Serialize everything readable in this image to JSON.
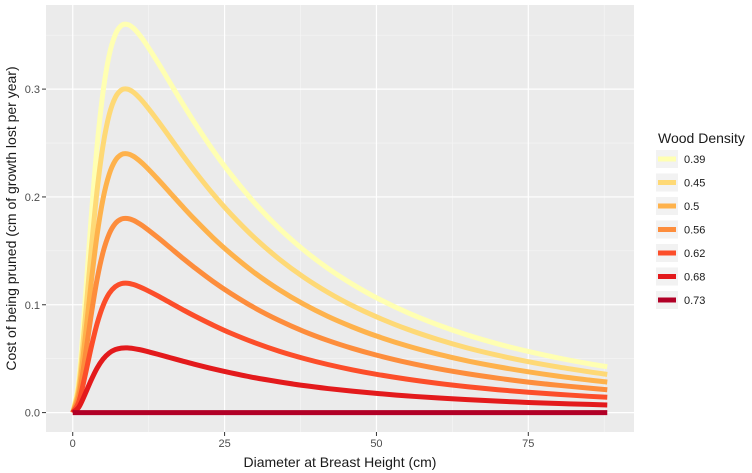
{
  "chart_data": {
    "type": "line",
    "xlabel": "Diameter at Breast Height (cm)",
    "ylabel": "Cost of being pruned (cm of growth lost per year)",
    "xlim": [
      -4.4,
      92.4
    ],
    "ylim": [
      -0.018,
      0.378
    ],
    "x_ticks": [
      0,
      25,
      50,
      75
    ],
    "x_tick_labels": [
      "0",
      "25",
      "50",
      "75"
    ],
    "y_ticks": [
      0.0,
      0.1,
      0.2,
      0.3
    ],
    "y_tick_labels": [
      "0.0",
      "0.1",
      "0.2",
      "0.3"
    ],
    "grid": true,
    "legend_title": "Wood Density",
    "legend_position": "right",
    "x": [
      0,
      1,
      2,
      3,
      4,
      5,
      6,
      7,
      8,
      9,
      10,
      11,
      12,
      14,
      16,
      18,
      20,
      23,
      26,
      30,
      34,
      38,
      42,
      46,
      50,
      55,
      60,
      65,
      70,
      75,
      80,
      85,
      88
    ],
    "series": [
      {
        "name": "0.39",
        "color": "#ffffb2",
        "values": [
          0.0,
          0.0301,
          0.1002,
          0.1781,
          0.2466,
          0.2978,
          0.3314,
          0.3505,
          0.3589,
          0.36,
          0.3565,
          0.3502,
          0.3424,
          0.3248,
          0.3061,
          0.2874,
          0.2694,
          0.2441,
          0.2212,
          0.1941,
          0.1708,
          0.1509,
          0.1338,
          0.1192,
          0.1065,
          0.093,
          0.0816,
          0.0719,
          0.0637,
          0.0567,
          0.0506,
          0.0453,
          0.0425
        ]
      },
      {
        "name": "0.45",
        "color": "#fed976",
        "values": [
          0.0,
          0.0251,
          0.0835,
          0.1484,
          0.2055,
          0.2482,
          0.2762,
          0.2921,
          0.2991,
          0.3,
          0.2971,
          0.2918,
          0.2853,
          0.2707,
          0.2551,
          0.2395,
          0.2245,
          0.2034,
          0.1843,
          0.1617,
          0.1423,
          0.1257,
          0.1115,
          0.0993,
          0.0888,
          0.0775,
          0.068,
          0.0599,
          0.0531,
          0.0472,
          0.0422,
          0.0378,
          0.0354
        ]
      },
      {
        "name": "0.5",
        "color": "#feb24c",
        "values": [
          0.0,
          0.0201,
          0.0668,
          0.1187,
          0.1644,
          0.1985,
          0.2209,
          0.2337,
          0.2393,
          0.24,
          0.2377,
          0.2335,
          0.2283,
          0.2165,
          0.2041,
          0.1916,
          0.1796,
          0.1627,
          0.1475,
          0.1294,
          0.1139,
          0.1006,
          0.0892,
          0.0795,
          0.071,
          0.062,
          0.0544,
          0.0479,
          0.0425,
          0.0378,
          0.0337,
          0.0302,
          0.0283
        ]
      },
      {
        "name": "0.56",
        "color": "#fd8d3c",
        "values": [
          0.0,
          0.0151,
          0.0501,
          0.0891,
          0.1233,
          0.1489,
          0.1657,
          0.1753,
          0.1795,
          0.18,
          0.1783,
          0.1751,
          0.1712,
          0.1624,
          0.1531,
          0.1437,
          0.1347,
          0.122,
          0.1106,
          0.097,
          0.0854,
          0.0754,
          0.0669,
          0.0596,
          0.0533,
          0.0465,
          0.0408,
          0.036,
          0.0319,
          0.0283,
          0.0253,
          0.0227,
          0.0212
        ]
      },
      {
        "name": "0.62",
        "color": "#fc4e2a",
        "values": [
          0.0,
          0.01,
          0.0334,
          0.0594,
          0.0822,
          0.0993,
          0.1105,
          0.1168,
          0.1196,
          0.12,
          0.1188,
          0.1167,
          0.1141,
          0.1083,
          0.102,
          0.0958,
          0.0898,
          0.0814,
          0.0737,
          0.0647,
          0.0569,
          0.0503,
          0.0446,
          0.0397,
          0.0355,
          0.031,
          0.0272,
          0.024,
          0.0212,
          0.0189,
          0.0169,
          0.0151,
          0.0142
        ]
      },
      {
        "name": "0.68",
        "color": "#e31a1c",
        "values": [
          0.0,
          0.005,
          0.0167,
          0.0297,
          0.0411,
          0.0496,
          0.0552,
          0.0584,
          0.0598,
          0.06,
          0.0594,
          0.0584,
          0.0571,
          0.0541,
          0.051,
          0.0479,
          0.0449,
          0.0407,
          0.0369,
          0.0323,
          0.0285,
          0.0251,
          0.0223,
          0.0199,
          0.0178,
          0.0155,
          0.0136,
          0.012,
          0.0106,
          0.0094,
          0.0084,
          0.0076,
          0.0071
        ]
      },
      {
        "name": "0.73",
        "color": "#b10026",
        "values": [
          0.0,
          0.0,
          0.0,
          0.0,
          0.0,
          0.0,
          0.0,
          0.0,
          0.0,
          0.0,
          0.0,
          0.0,
          0.0,
          0.0,
          0.0,
          0.0,
          0.0,
          0.0,
          0.0,
          0.0,
          0.0,
          0.0,
          0.0,
          0.0,
          0.0,
          0.0,
          0.0,
          0.0,
          0.0,
          0.0,
          0.0,
          0.0,
          0.0
        ]
      }
    ]
  }
}
